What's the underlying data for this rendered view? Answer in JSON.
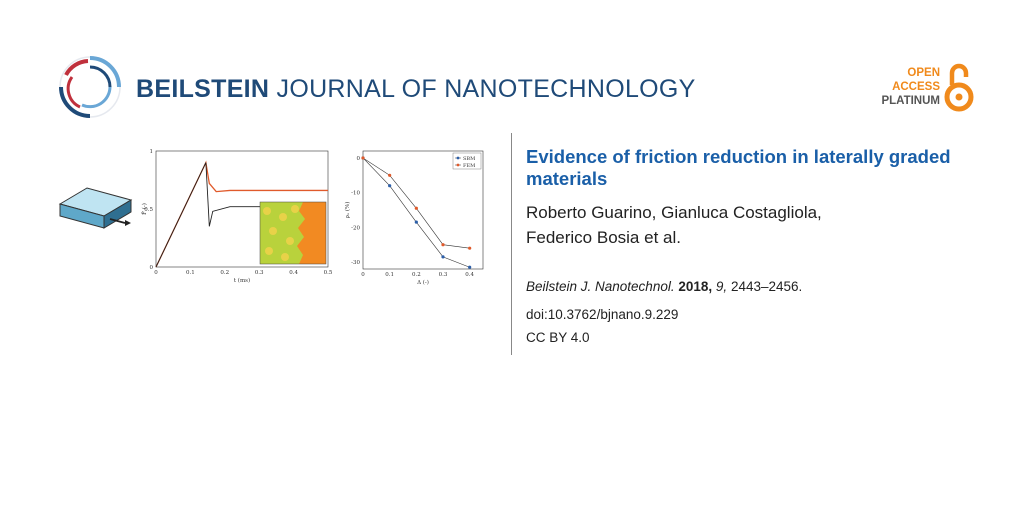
{
  "journal": {
    "name_bold": "BEILSTEIN",
    "name_rest": "JOURNAL OF NANOTECHNOLOGY",
    "badge": {
      "line1": "OPEN",
      "line2": "ACCESS",
      "line3": "PLATINUM"
    }
  },
  "article": {
    "title": "Evidence of friction reduction in laterally graded materials",
    "authors_line1": "Roberto Guarino, Gianluca Costagliola,",
    "authors_line2": "Federico Bosia et al.",
    "citation": {
      "journal_abbrev": "Beilstein J. Nanotechnol.",
      "year": "2018,",
      "volume": "9,",
      "pages": "2443–2456."
    },
    "doi": "doi:10.3762/bjnano.9.229",
    "license": "CC BY 4.0"
  },
  "colors": {
    "navy": "#1f4a78",
    "blue": "#1a5fa8",
    "orange": "#f08a1c",
    "red": "#c0303c"
  },
  "chart_data": [
    {
      "type": "line",
      "xlabel": "t (ms)",
      "ylabel": "F̄ (-)",
      "xlim": [
        0,
        0.5
      ],
      "ylim": [
        0,
        1
      ],
      "x_ticks": [
        "0",
        "0.1",
        "0.2",
        "0.3",
        "0.4",
        "0.5"
      ],
      "y_ticks": [
        "0",
        "0.5",
        "1"
      ],
      "series": [
        {
          "x": [
            0,
            0.145,
            0.155,
            0.175,
            0.215,
            0.5
          ],
          "y": [
            0,
            0.9,
            0.72,
            0.65,
            0.66,
            0.66
          ]
        },
        {
          "x": [
            0,
            0.145,
            0.155,
            0.165,
            0.215,
            0.4
          ],
          "y": [
            0,
            0.9,
            0.35,
            0.48,
            0.52,
            0.52
          ]
        }
      ]
    },
    {
      "type": "line",
      "xlabel": "Δ (-)",
      "ylabel": "ρᵤ (%)",
      "x": [
        0,
        0.1,
        0.2,
        0.3,
        0.4
      ],
      "xlim": [
        0,
        0.45
      ],
      "ylim": [
        -32,
        2
      ],
      "x_ticks": [
        "0",
        "0.1",
        "0.2",
        "0.3",
        "0.4"
      ],
      "y_ticks": [
        "0",
        "-10",
        "-20",
        "-30"
      ],
      "legend": "top-right",
      "series": [
        {
          "name": "SBM",
          "values": [
            0,
            -8,
            -18.5,
            -28.5,
            -31.5
          ]
        },
        {
          "name": "FEM",
          "values": [
            0,
            -5,
            -14.5,
            -25,
            -26
          ]
        }
      ]
    }
  ]
}
